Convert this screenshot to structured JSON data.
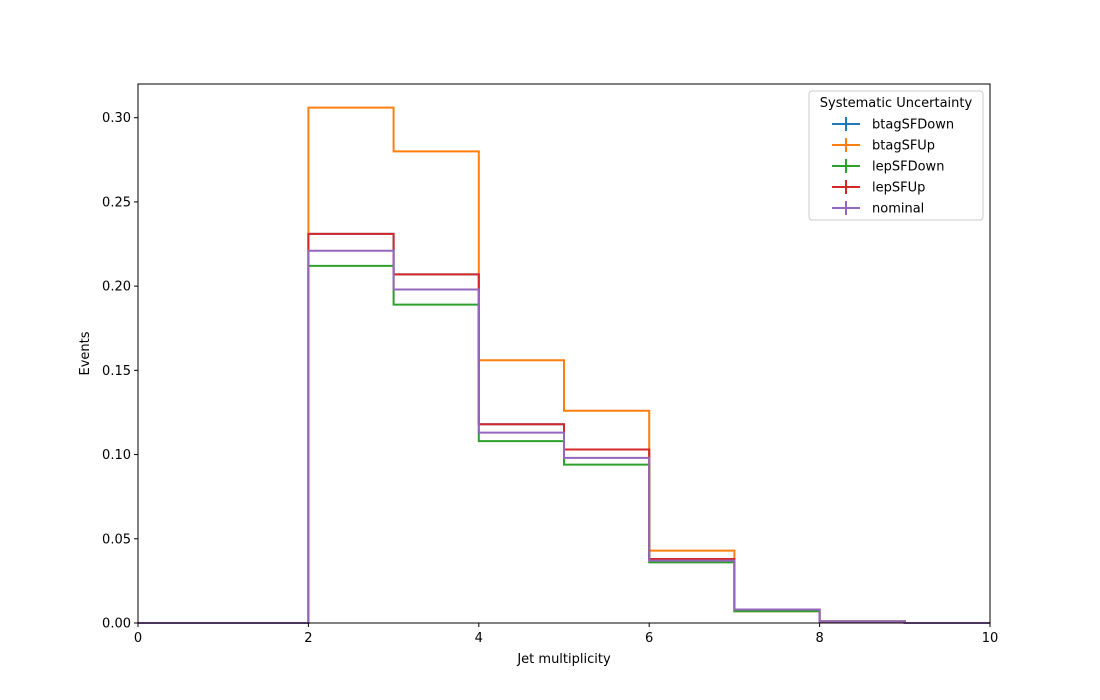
{
  "chart_data": {
    "type": "line",
    "step": "histogram",
    "title": "",
    "xlabel": "Jet multiplicity",
    "ylabel": "Events",
    "xlim": [
      0,
      10
    ],
    "ylim": [
      0,
      0.32
    ],
    "xticks": [
      "0",
      "2",
      "4",
      "6",
      "8",
      "10"
    ],
    "yticks": [
      "0.00",
      "0.05",
      "0.10",
      "0.15",
      "0.20",
      "0.25",
      "0.30"
    ],
    "bin_edges": [
      0,
      1,
      2,
      3,
      4,
      5,
      6,
      7,
      8,
      9,
      10
    ],
    "grid": false,
    "legend": {
      "title": "Systematic Uncertainty",
      "position": "top-right"
    },
    "series": [
      {
        "name": "btagSFDown",
        "color": "#1f77b4",
        "values": [
          0,
          0,
          0.231,
          0.207,
          0.118,
          0.103,
          0.038,
          0.008,
          0.001,
          0
        ]
      },
      {
        "name": "btagSFUp",
        "color": "#ff7f0e",
        "values": [
          0,
          0,
          0.306,
          0.28,
          0.156,
          0.126,
          0.043,
          0.007,
          0.001,
          0
        ]
      },
      {
        "name": "lepSFDown",
        "color": "#2ca02c",
        "values": [
          0,
          0,
          0.212,
          0.189,
          0.108,
          0.094,
          0.036,
          0.007,
          0.001,
          0
        ]
      },
      {
        "name": "lepSFUp",
        "color": "#d62728",
        "values": [
          0,
          0,
          0.231,
          0.207,
          0.118,
          0.103,
          0.038,
          0.008,
          0.001,
          0
        ]
      },
      {
        "name": "nominal",
        "color": "#9467bd",
        "values": [
          0,
          0,
          0.221,
          0.198,
          0.113,
          0.098,
          0.037,
          0.008,
          0.001,
          0
        ]
      }
    ]
  }
}
